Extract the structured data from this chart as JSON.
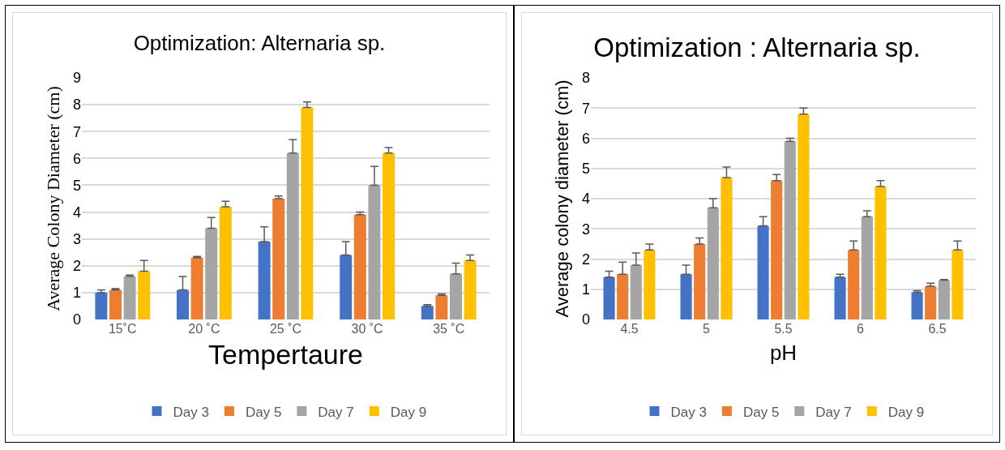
{
  "chart_data": [
    {
      "type": "bar",
      "title": "Optimization: Alternaria sp.",
      "xlabel": "Tempertaure",
      "ylabel": "Average Colony Diameter (cm)",
      "categories": [
        "15˚C",
        "20 ˚C",
        "25 ˚C",
        "30 ˚C",
        "35 ˚C"
      ],
      "series": [
        {
          "name": "Day 3",
          "color": "#4472c4",
          "values": [
            1.0,
            1.1,
            2.9,
            2.4,
            0.5
          ],
          "errors": [
            [
              1.0,
              1.1
            ],
            [
              1.1,
              1.6
            ],
            [
              2.9,
              3.45
            ],
            [
              2.4,
              2.9
            ],
            [
              0.5,
              0.55
            ]
          ]
        },
        {
          "name": "Day 5",
          "color": "#ed7d31",
          "values": [
            1.1,
            2.3,
            4.5,
            3.9,
            0.9
          ],
          "errors": [
            [
              1.1,
              1.15
            ],
            [
              2.3,
              2.35
            ],
            [
              4.5,
              4.6
            ],
            [
              3.9,
              4.0
            ],
            [
              0.9,
              0.95
            ]
          ]
        },
        {
          "name": "Day 7",
          "color": "#a5a5a5",
          "values": [
            1.6,
            3.4,
            6.2,
            5.0,
            1.7
          ],
          "errors": [
            [
              1.6,
              1.65
            ],
            [
              3.4,
              3.8
            ],
            [
              6.2,
              6.7
            ],
            [
              5.0,
              5.7
            ],
            [
              1.7,
              2.1
            ]
          ]
        },
        {
          "name": "Day 9",
          "color": "#ffc000",
          "values": [
            1.8,
            4.2,
            7.9,
            6.2,
            2.2
          ],
          "errors": [
            [
              1.8,
              2.2
            ],
            [
              4.2,
              4.4
            ],
            [
              7.9,
              8.1
            ],
            [
              6.2,
              6.4
            ],
            [
              2.2,
              2.4
            ]
          ]
        }
      ],
      "ylim": [
        0,
        9
      ],
      "yticks": [
        0,
        1,
        2,
        3,
        4,
        5,
        6,
        7,
        8,
        9
      ],
      "grid": "y",
      "legend": "bottom"
    },
    {
      "type": "bar",
      "title": "Optimization : Alternaria sp.",
      "xlabel": "pH",
      "ylabel": "Average colony diameter (cm)",
      "categories": [
        "4.5",
        "5",
        "5.5",
        "6",
        "6.5"
      ],
      "series": [
        {
          "name": "Day 3",
          "color": "#4472c4",
          "values": [
            1.4,
            1.5,
            3.1,
            1.4,
            0.9
          ],
          "errors": [
            [
              1.4,
              1.6
            ],
            [
              1.5,
              1.8
            ],
            [
              3.1,
              3.4
            ],
            [
              1.4,
              1.5
            ],
            [
              0.9,
              0.95
            ]
          ]
        },
        {
          "name": "Day 5",
          "color": "#ed7d31",
          "values": [
            1.5,
            2.5,
            4.6,
            2.3,
            1.1
          ],
          "errors": [
            [
              1.5,
              1.9
            ],
            [
              2.5,
              2.7
            ],
            [
              4.6,
              4.8
            ],
            [
              2.3,
              2.6
            ],
            [
              1.1,
              1.2
            ]
          ]
        },
        {
          "name": "Day 7",
          "color": "#a5a5a5",
          "values": [
            1.8,
            3.7,
            5.9,
            3.4,
            1.3
          ],
          "errors": [
            [
              1.8,
              2.2
            ],
            [
              3.7,
              4.0
            ],
            [
              5.9,
              6.0
            ],
            [
              3.4,
              3.6
            ],
            [
              1.3,
              1.32
            ]
          ]
        },
        {
          "name": "Day 9",
          "color": "#ffc000",
          "values": [
            2.3,
            4.7,
            6.8,
            4.4,
            2.3
          ],
          "errors": [
            [
              2.3,
              2.5
            ],
            [
              4.7,
              5.05
            ],
            [
              6.8,
              7.0
            ],
            [
              4.4,
              4.6
            ],
            [
              2.3,
              2.6
            ]
          ]
        }
      ],
      "ylim": [
        0,
        8
      ],
      "yticks": [
        0,
        1,
        2,
        3,
        4,
        5,
        6,
        7,
        8
      ],
      "grid": "y",
      "legend": "bottom"
    }
  ]
}
